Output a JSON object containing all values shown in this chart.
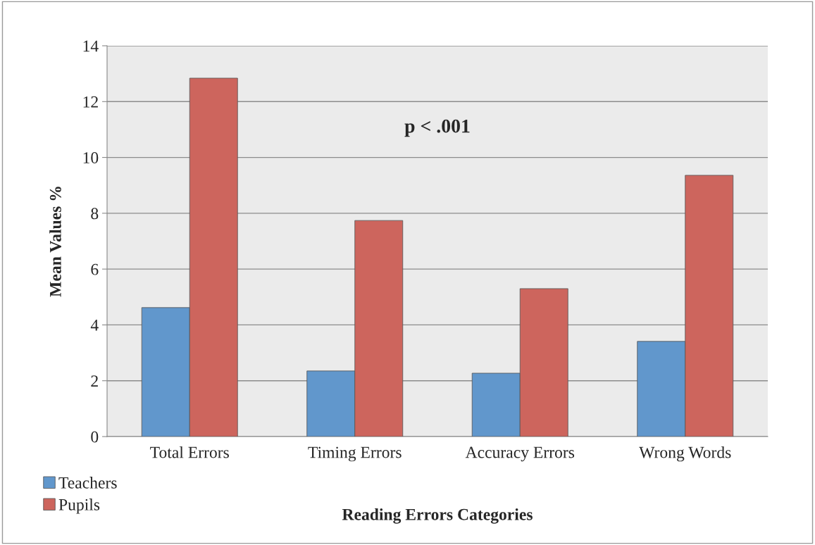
{
  "chart_data": {
    "type": "bar",
    "xlabel": "Reading Errors Categories",
    "ylabel": "Mean Values %",
    "categories": [
      "Total Errors",
      "Timing Errors",
      "Accuracy Errors",
      "Wrong Words"
    ],
    "series": [
      {
        "name": "Teachers",
        "color": "#6197cc",
        "values": [
          4.62,
          2.35,
          2.27,
          3.41
        ]
      },
      {
        "name": "Pupils",
        "color": "#cd655d",
        "values": [
          12.84,
          7.74,
          5.3,
          9.36
        ]
      }
    ],
    "ylim": [
      0,
      14
    ],
    "yticks": [
      0,
      2,
      4,
      6,
      8,
      10,
      12,
      14
    ],
    "grid": "y",
    "legend": "bottom left",
    "annotations": [
      "p < .001"
    ]
  }
}
